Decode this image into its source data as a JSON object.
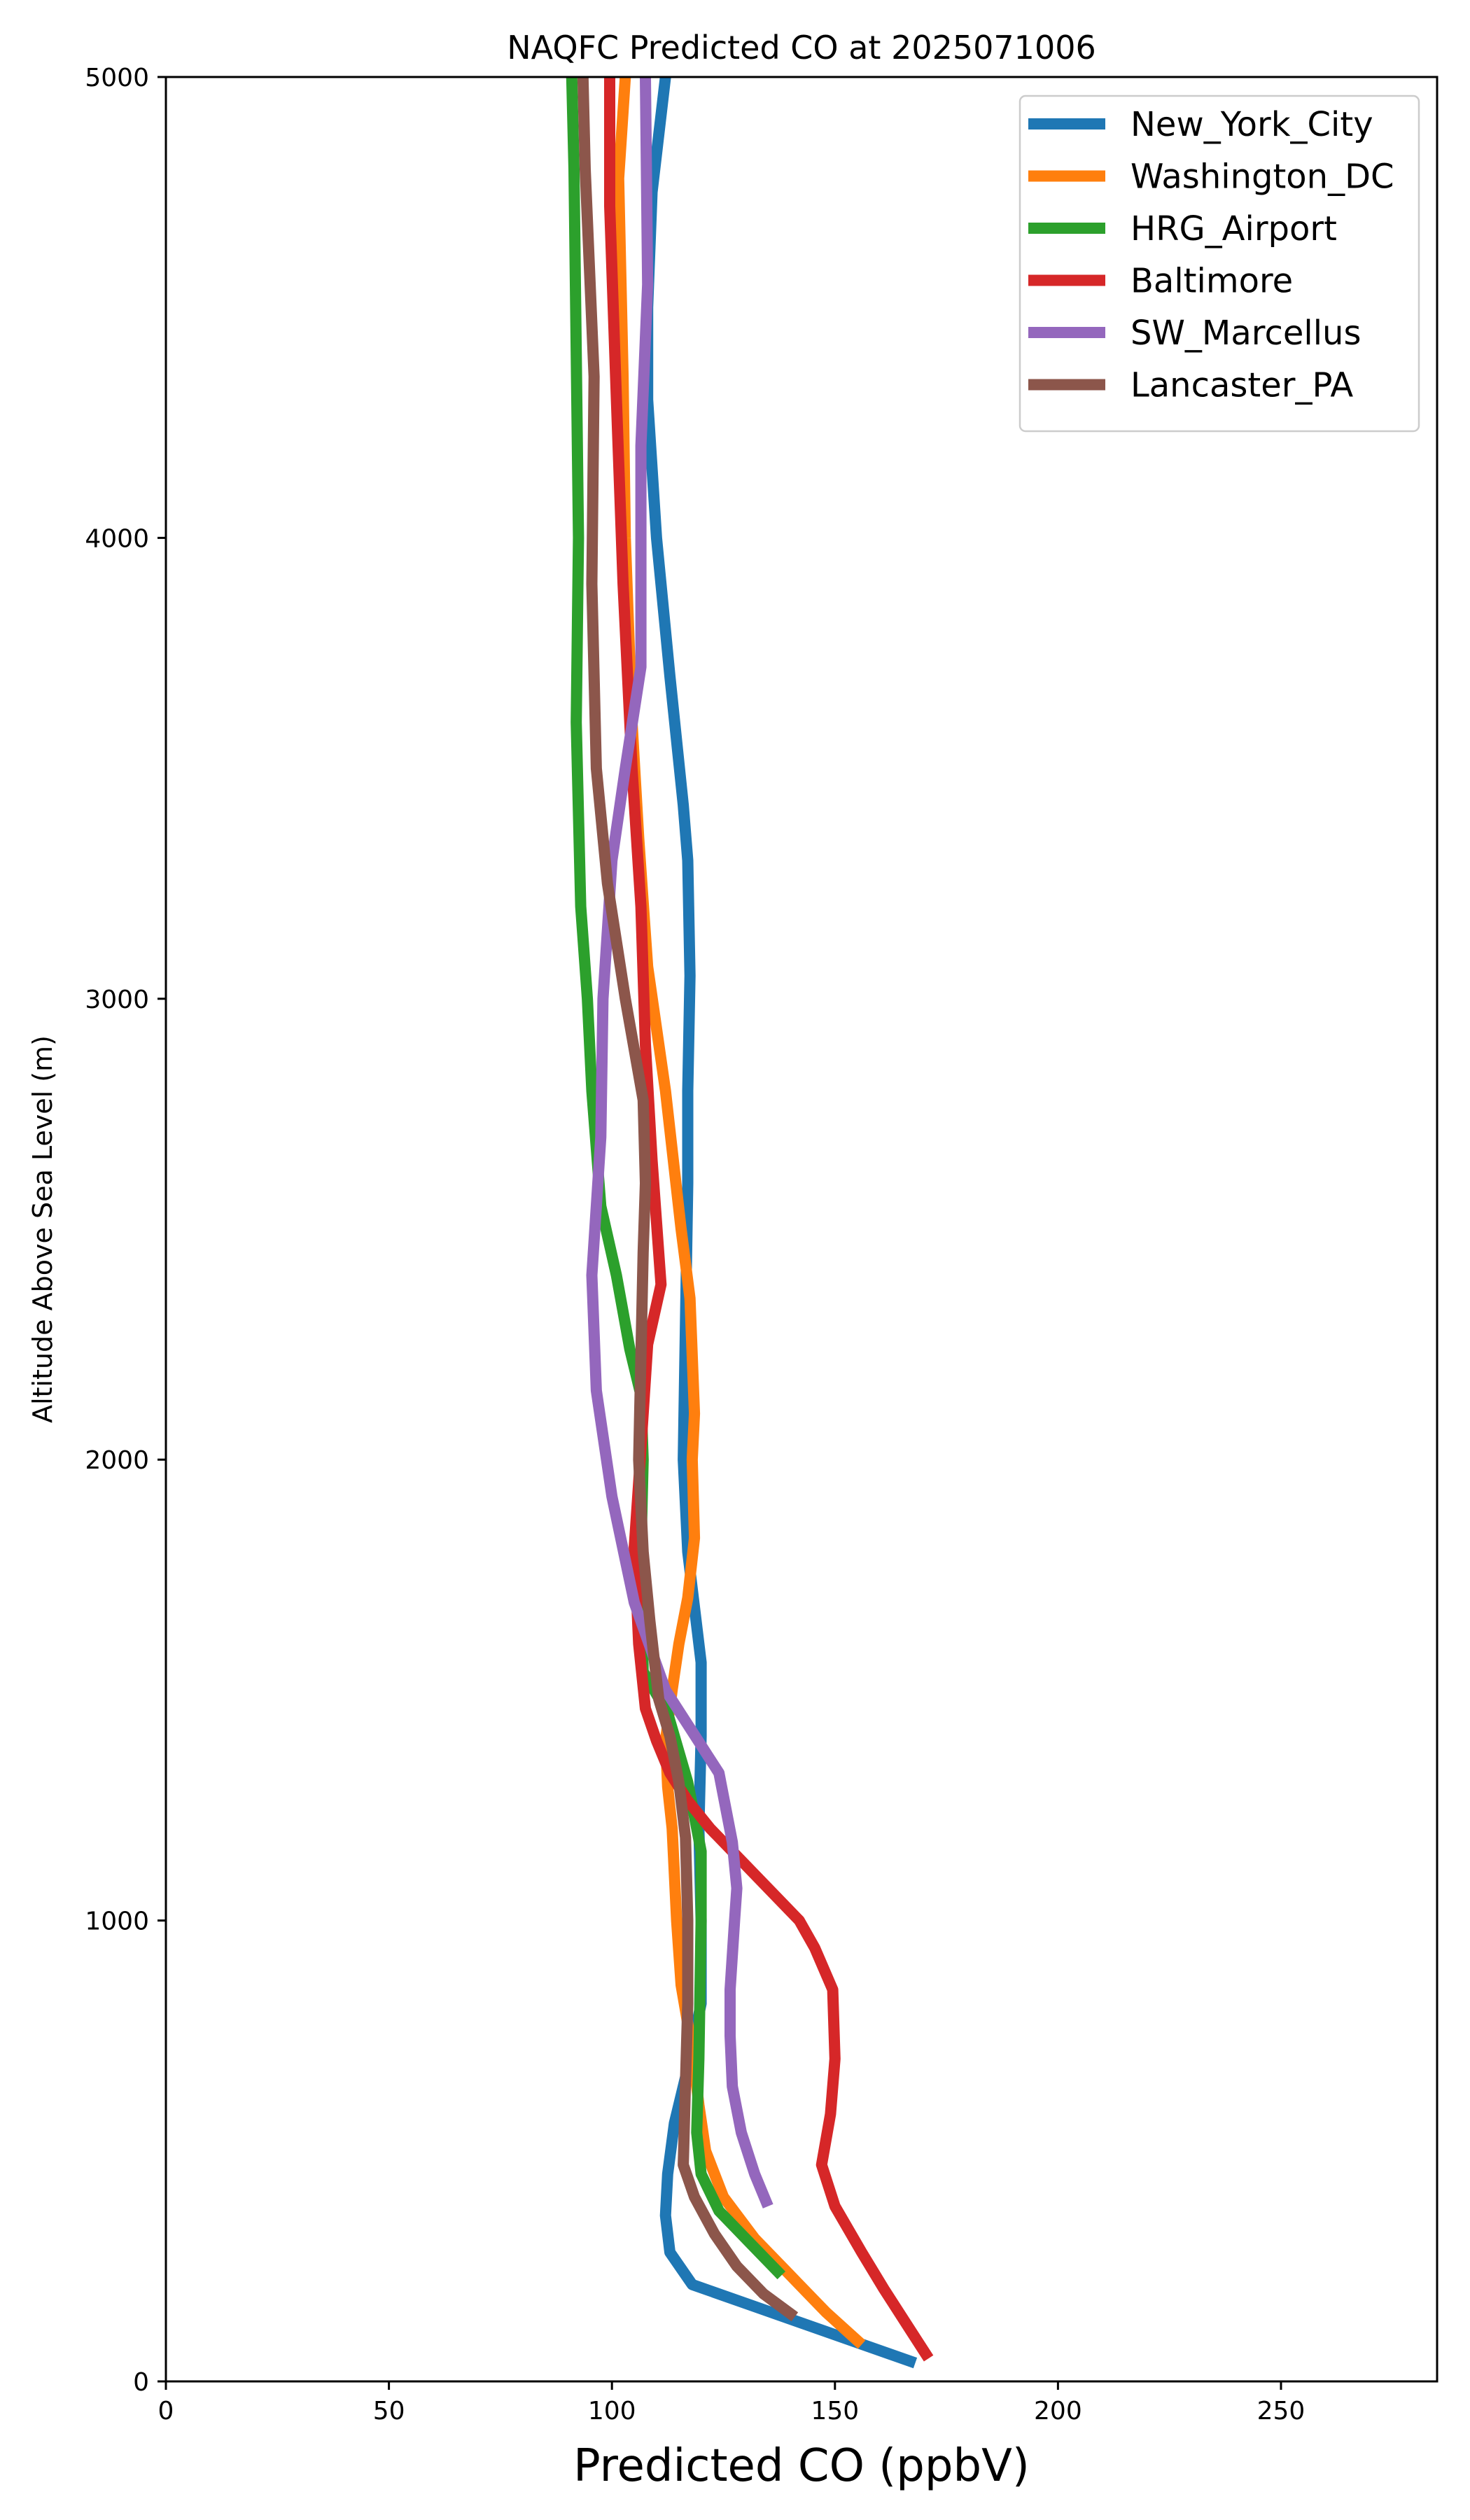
{
  "chart_data": {
    "type": "line",
    "title": "NAQFC Predicted CO at 2025071006",
    "xlabel": "Predicted CO (ppbV)",
    "ylabel": "Altitude Above Sea Level (m)",
    "xlim": [
      0,
      285
    ],
    "ylim": [
      0,
      5000
    ],
    "xticks": [
      0,
      50,
      100,
      150,
      200,
      250
    ],
    "yticks": [
      0,
      1000,
      2000,
      3000,
      4000,
      5000
    ],
    "grid": false,
    "legend_position": "top-right",
    "series": [
      {
        "name": "New_York_City",
        "color": "#1f77b4",
        "points": [
          [
            168,
            40
          ],
          [
            118,
            210
          ],
          [
            113,
            280
          ],
          [
            112,
            360
          ],
          [
            112.5,
            450
          ],
          [
            114,
            560
          ],
          [
            117,
            680
          ],
          [
            120,
            820
          ],
          [
            120,
            1000
          ],
          [
            119.5,
            1200
          ],
          [
            120,
            1400
          ],
          [
            120,
            1560
          ],
          [
            117,
            1800
          ],
          [
            116,
            2000
          ],
          [
            116.5,
            2300
          ],
          [
            117,
            2600
          ],
          [
            117,
            2800
          ],
          [
            117.5,
            3050
          ],
          [
            117,
            3300
          ],
          [
            116,
            3420
          ],
          [
            113,
            3700
          ],
          [
            110,
            4000
          ],
          [
            108,
            4300
          ],
          [
            108,
            4500
          ],
          [
            109,
            4750
          ],
          [
            112,
            5000
          ]
        ]
      },
      {
        "name": "Washington_DC",
        "color": "#ff7f0e",
        "points": [
          [
            156,
            80
          ],
          [
            148,
            150
          ],
          [
            140,
            230
          ],
          [
            132,
            310
          ],
          [
            125,
            400
          ],
          [
            121,
            500
          ],
          [
            119.5,
            600
          ],
          [
            118,
            720
          ],
          [
            115.5,
            860
          ],
          [
            114.5,
            1000
          ],
          [
            114,
            1100
          ],
          [
            113.5,
            1200
          ],
          [
            112.5,
            1290
          ],
          [
            112,
            1390
          ],
          [
            113.5,
            1500
          ],
          [
            115,
            1600
          ],
          [
            117,
            1700
          ],
          [
            118.5,
            1830
          ],
          [
            118,
            2000
          ],
          [
            118.5,
            2100
          ],
          [
            117.5,
            2350
          ],
          [
            115.5,
            2500
          ],
          [
            112,
            2800
          ],
          [
            108,
            3070
          ],
          [
            106,
            3350
          ],
          [
            104.5,
            3600
          ],
          [
            103,
            4000
          ],
          [
            102.5,
            4350
          ],
          [
            101.5,
            4780
          ],
          [
            103,
            5000
          ]
        ]
      },
      {
        "name": "HRG_Airport",
        "color": "#2ca02c",
        "points": [
          [
            138,
            230
          ],
          [
            131,
            300
          ],
          [
            124,
            370
          ],
          [
            120,
            450
          ],
          [
            119,
            540
          ],
          [
            119.5,
            700
          ],
          [
            120,
            1000
          ],
          [
            120,
            1150
          ],
          [
            119,
            1200
          ],
          [
            117,
            1300
          ],
          [
            112.5,
            1450
          ],
          [
            107,
            1540
          ],
          [
            106.5,
            1800
          ],
          [
            107,
            2000
          ],
          [
            106.5,
            2140
          ],
          [
            104,
            2240
          ],
          [
            101,
            2400
          ],
          [
            97.5,
            2550
          ],
          [
            95.5,
            2800
          ],
          [
            94.5,
            3000
          ],
          [
            93,
            3200
          ],
          [
            92,
            3600
          ],
          [
            92.5,
            4000
          ],
          [
            92,
            4400
          ],
          [
            91.5,
            4800
          ],
          [
            91,
            5000
          ]
        ]
      },
      {
        "name": "Baltimore",
        "color": "#d62728",
        "points": [
          [
            171,
            50
          ],
          [
            167,
            110
          ],
          [
            161,
            200
          ],
          [
            156,
            280
          ],
          [
            150,
            380
          ],
          [
            147,
            470
          ],
          [
            149,
            580
          ],
          [
            150,
            700
          ],
          [
            149.5,
            850
          ],
          [
            145.5,
            940
          ],
          [
            142,
            1000
          ],
          [
            136,
            1060
          ],
          [
            130,
            1120
          ],
          [
            122,
            1200
          ],
          [
            117,
            1260
          ],
          [
            113,
            1320
          ],
          [
            110,
            1390
          ],
          [
            107.5,
            1460
          ],
          [
            106,
            1600
          ],
          [
            105,
            1810
          ],
          [
            106,
            1950
          ],
          [
            108,
            2250
          ],
          [
            111,
            2380
          ],
          [
            109,
            2650
          ],
          [
            107.5,
            2900
          ],
          [
            106.5,
            3200
          ],
          [
            104.5,
            3500
          ],
          [
            102.5,
            3900
          ],
          [
            101,
            4300
          ],
          [
            99.5,
            4720
          ],
          [
            99.5,
            5000
          ]
        ]
      },
      {
        "name": "SW_Marcellus",
        "color": "#9467bd",
        "points": [
          [
            135,
            380
          ],
          [
            132,
            450
          ],
          [
            129,
            540
          ],
          [
            127,
            640
          ],
          [
            126.5,
            750
          ],
          [
            126.5,
            850
          ],
          [
            127.5,
            1000
          ],
          [
            128,
            1070
          ],
          [
            127,
            1170
          ],
          [
            124,
            1320
          ],
          [
            118,
            1410
          ],
          [
            112,
            1500
          ],
          [
            105,
            1690
          ],
          [
            100,
            1920
          ],
          [
            96.5,
            2150
          ],
          [
            95.5,
            2400
          ],
          [
            97.5,
            2700
          ],
          [
            98,
            3000
          ],
          [
            100,
            3300
          ],
          [
            103,
            3500
          ],
          [
            106.5,
            3720
          ],
          [
            106.5,
            4000
          ],
          [
            106.5,
            4200
          ],
          [
            108,
            4550
          ],
          [
            107.5,
            5000
          ]
        ]
      },
      {
        "name": "Lancaster_PA",
        "color": "#8c564b",
        "points": [
          [
            141,
            140
          ],
          [
            134,
            190
          ],
          [
            128,
            250
          ],
          [
            123,
            320
          ],
          [
            118.5,
            400
          ],
          [
            116,
            470
          ],
          [
            116.5,
            650
          ],
          [
            117,
            820
          ],
          [
            117,
            1000
          ],
          [
            116.5,
            1180
          ],
          [
            115,
            1300
          ],
          [
            113,
            1400
          ],
          [
            110.5,
            1480
          ],
          [
            108.5,
            1650
          ],
          [
            107,
            1800
          ],
          [
            106,
            2000
          ],
          [
            107,
            2450
          ],
          [
            107.5,
            2600
          ],
          [
            107,
            2780
          ],
          [
            103,
            3000
          ],
          [
            99,
            3250
          ],
          [
            96.5,
            3500
          ],
          [
            95.5,
            3900
          ],
          [
            96,
            4350
          ],
          [
            94,
            4800
          ],
          [
            93.5,
            5000
          ]
        ]
      }
    ]
  }
}
